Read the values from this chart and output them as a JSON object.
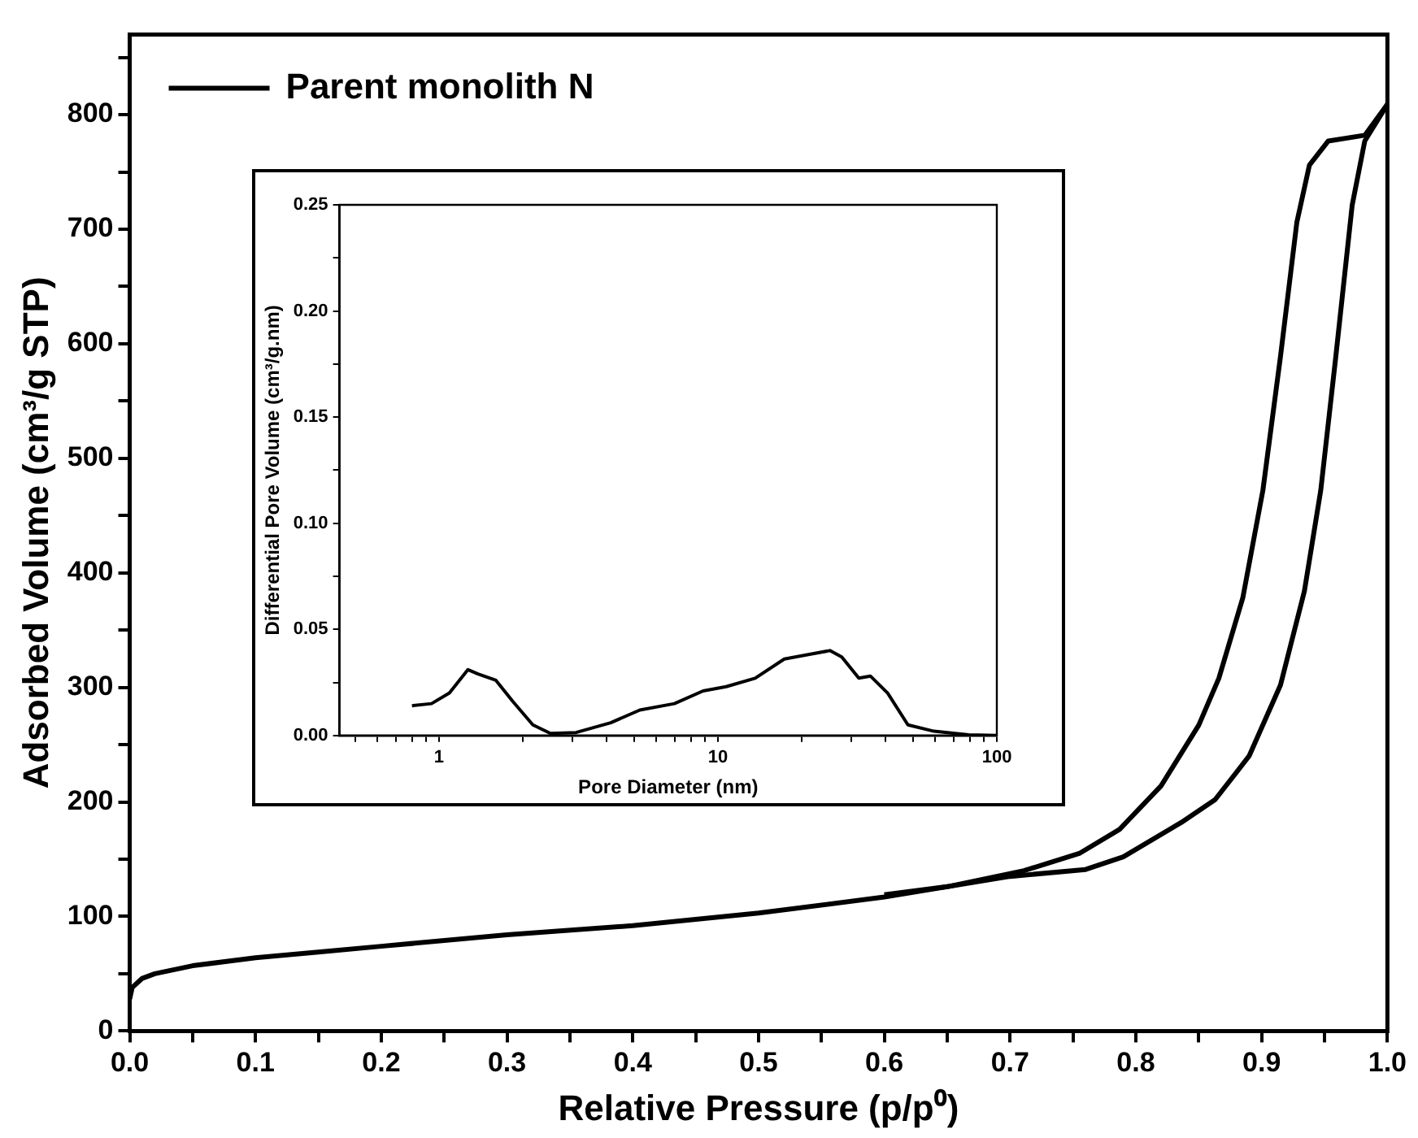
{
  "chart_data": [
    {
      "type": "line",
      "xlabel": "Relative Pressure (p/p⁰)",
      "ylabel": "Adsorbed Volume (cm³/g STP)",
      "legend": "top left",
      "xlim": [
        0,
        1
      ],
      "ylim": [
        0,
        870
      ],
      "xticks": [
        {
          "value": 0,
          "label": "0.0"
        },
        {
          "value": 0.05,
          "label": null
        },
        0.1,
        {
          "value": 0.15,
          "label": null
        },
        0.2,
        {
          "value": 0.25,
          "label": null
        },
        0.3,
        {
          "value": 0.35,
          "label": null
        },
        0.4,
        {
          "value": 0.45,
          "label": null
        },
        0.5,
        {
          "value": 0.55,
          "label": null
        },
        0.6,
        {
          "value": 0.65,
          "label": null
        },
        0.7,
        {
          "value": 0.75,
          "label": null
        },
        0.8,
        {
          "value": 0.85,
          "label": null
        },
        0.9,
        {
          "value": 0.95,
          "label": null
        },
        {
          "value": 1,
          "label": "1.0"
        }
      ],
      "yticks": [
        0,
        {
          "value": 50,
          "label": null
        },
        100,
        {
          "value": 150,
          "label": null
        },
        200,
        {
          "value": 250,
          "label": null
        },
        300,
        {
          "value": 350,
          "label": null
        },
        400,
        {
          "value": 450,
          "label": null
        },
        500,
        {
          "value": 550,
          "label": null
        },
        600,
        {
          "value": 650,
          "label": null
        },
        700,
        {
          "value": 750,
          "label": null
        },
        800,
        {
          "value": 850,
          "label": null
        }
      ],
      "series": [
        {
          "name": "Parent monolith N",
          "color": "#000000",
          "x": [
            0,
            0.002,
            0.01,
            0.02,
            0.05,
            0.1,
            0.15,
            0.2,
            0.3,
            0.4,
            0.5,
            0.6,
            0.7,
            0.76,
            0.79,
            0.836,
            0.863,
            0.89,
            0.915,
            0.934,
            0.947,
            0.959,
            0.972,
            0.982,
            1.0
          ],
          "values": [
            28,
            38,
            46,
            50,
            57,
            64,
            69,
            74,
            84,
            92,
            103,
            117,
            135,
            141,
            152,
            182,
            202,
            240,
            302,
            384,
            472,
            589,
            721,
            777,
            809
          ]
        },
        {
          "color": "#000000",
          "x": [
            1.0,
            0.982,
            0.953,
            0.938,
            0.928,
            0.915,
            0.901,
            0.885,
            0.866,
            0.85,
            0.82,
            0.787,
            0.755,
            0.711,
            0.65,
            0.6
          ],
          "values": [
            809,
            782,
            777,
            756,
            706,
            589,
            472,
            378,
            308,
            267,
            214,
            176,
            155,
            140,
            126,
            119
          ]
        }
      ]
    },
    {
      "type": "line",
      "xlabel": "Pore Diameter (nm)",
      "ylabel": "Differential Pore Volume (cm³/g.nm)",
      "log": "x",
      "xlim": [
        0.44,
        100
      ],
      "ylim": [
        0,
        0.25
      ],
      "xticks": [
        {
          "value": 0.5,
          "label": null
        },
        {
          "value": 0.6,
          "label": null
        },
        {
          "value": 0.7,
          "label": null
        },
        {
          "value": 0.8,
          "label": null
        },
        {
          "value": 0.9,
          "label": null
        },
        1,
        {
          "value": 2,
          "label": null
        },
        {
          "value": 3,
          "label": null
        },
        {
          "value": 4,
          "label": null
        },
        {
          "value": 5,
          "label": null
        },
        {
          "value": 6,
          "label": null
        },
        {
          "value": 7,
          "label": null
        },
        {
          "value": 8,
          "label": null
        },
        {
          "value": 9,
          "label": null
        },
        10,
        {
          "value": 20,
          "label": null
        },
        {
          "value": 30,
          "label": null
        },
        {
          "value": 40,
          "label": null
        },
        {
          "value": 50,
          "label": null
        },
        {
          "value": 60,
          "label": null
        },
        {
          "value": 70,
          "label": null
        },
        {
          "value": 80,
          "label": null
        },
        {
          "value": 90,
          "label": null
        },
        100
      ],
      "yticks": [
        {
          "value": 0,
          "label": "0.00"
        },
        {
          "value": 0.025,
          "label": null
        },
        0.05,
        {
          "value": 0.075,
          "label": null
        },
        {
          "value": 0.1,
          "label": "0.10"
        },
        {
          "value": 0.125,
          "label": null
        },
        0.15,
        {
          "value": 0.175,
          "label": null
        },
        {
          "value": 0.2,
          "label": "0.20"
        },
        {
          "value": 0.225,
          "label": null
        },
        0.25
      ],
      "series": [
        {
          "color": "#000000",
          "x": [
            0.8,
            0.94,
            1.09,
            1.27,
            1.38,
            1.6,
            1.84,
            2.17,
            2.51,
            3.1,
            4.13,
            5.25,
            6.98,
            8.85,
            10.7,
            13.6,
            17.3,
            20.9,
            25.2,
            27.8,
            32.0,
            35.2,
            40.6,
            48.0,
            59.5,
            79.2,
            100
          ],
          "values": [
            0.014,
            0.015,
            0.02,
            0.031,
            0.029,
            0.026,
            0.016,
            0.005,
            0.001,
            0.0014,
            0.006,
            0.012,
            0.015,
            0.021,
            0.023,
            0.027,
            0.036,
            0.038,
            0.04,
            0.037,
            0.027,
            0.028,
            0.02,
            0.005,
            0.002,
            0.0003,
            0
          ]
        }
      ]
    }
  ]
}
